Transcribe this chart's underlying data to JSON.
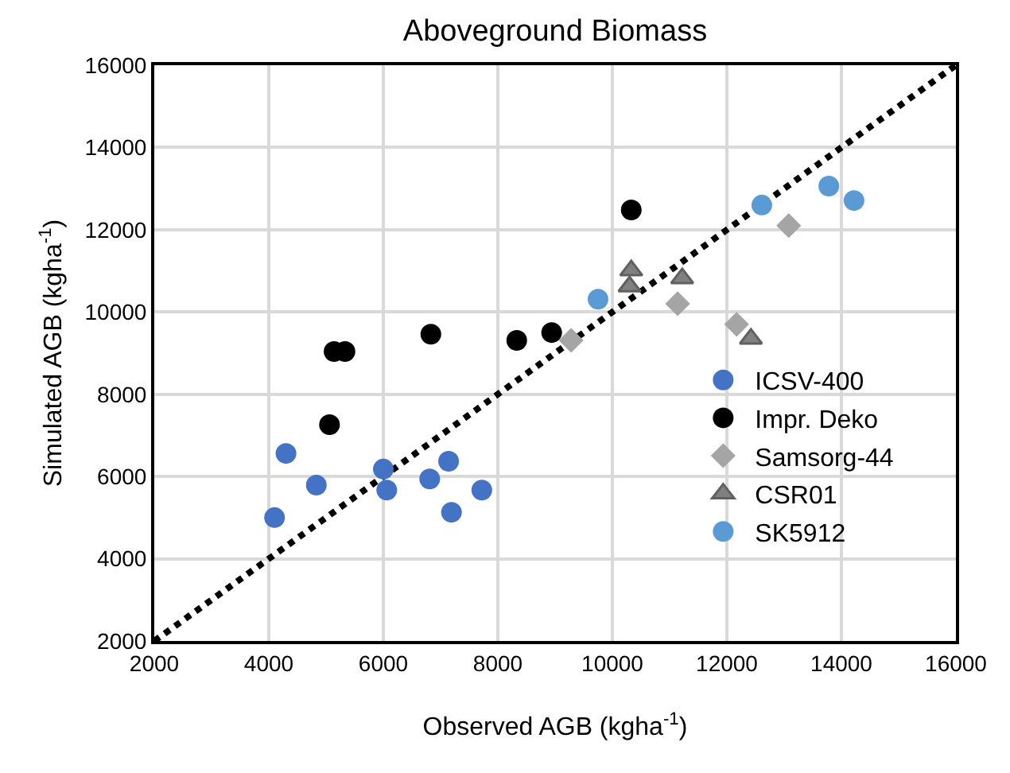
{
  "chart_data": {
    "type": "scatter",
    "title": "Aboveground Biomass",
    "xlabel": "Observed AGB (kgha$^{-1}$)",
    "ylabel": "Simulated AGB (kgha$^{-1}$)",
    "xlim": [
      2000,
      16000
    ],
    "xticks": [
      2000,
      4000,
      6000,
      8000,
      10000,
      12000,
      14000,
      16000
    ],
    "ylim": [
      2000,
      16000
    ],
    "yticks": [
      2000,
      4000,
      6000,
      8000,
      10000,
      12000,
      14000,
      16000
    ],
    "grid": true,
    "legend": "right",
    "series": [
      {
        "name": "ICSV-400",
        "color": "#4472c4",
        "marker": "circle",
        "x": [
          4100,
          4300,
          4830,
          6000,
          6060,
          6810,
          7140,
          7190,
          7720
        ],
        "values": [
          5000,
          6560,
          5790,
          6180,
          5670,
          5940,
          6370,
          5130,
          5670
        ]
      },
      {
        "name": "Impr. Deko",
        "color": "#000000",
        "marker": "circle",
        "x": [
          5060,
          5140,
          5330,
          6830,
          8330,
          8940,
          10330
        ],
        "values": [
          7260,
          9040,
          9040,
          9460,
          9310,
          9500,
          12480
        ]
      },
      {
        "name": "Samsorg-44",
        "color": "#a5a5a5",
        "marker": "diamond",
        "x": [
          9280,
          11140,
          12170,
          13080
        ],
        "values": [
          9310,
          10200,
          9700,
          12100
        ]
      },
      {
        "name": "CSR01",
        "color": "#808080",
        "marker": "triangle",
        "x": [
          10330,
          10300,
          11220,
          12420
        ],
        "values": [
          11010,
          10620,
          10820,
          9350
        ]
      },
      {
        "name": "SK5912",
        "color": "#5b9bd5",
        "marker": "circle",
        "x": [
          9750,
          12610,
          13780,
          14220
        ],
        "values": [
          10310,
          12600,
          13060,
          12710
        ]
      },
      {
        "type": "line",
        "color": "#000000",
        "line_style": "dotted",
        "marker": "none",
        "x": [
          2000,
          16000
        ],
        "values": [
          2000,
          16000
        ]
      }
    ]
  }
}
